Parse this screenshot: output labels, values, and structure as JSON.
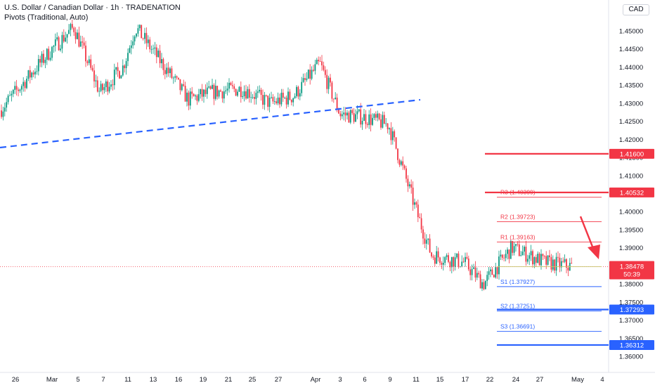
{
  "header": {
    "title": "U.S. Dollar / Canadian Dollar · 1h · TRADENATION",
    "indicator": "Pivots (Traditional, Auto)"
  },
  "currency": "CAD",
  "colors": {
    "up": "#089981",
    "down": "#f23645",
    "trendline": "#2962ff",
    "resistance": "#f23645",
    "support": "#2962ff",
    "pivot_r": "#f23645",
    "pivot_s": "#2962ff",
    "arrow": "#f23645",
    "price_line": "#f23645"
  },
  "chart_data": {
    "type": "candlestick",
    "title": "U.S. Dollar / Canadian Dollar · 1h · TRADENATION",
    "ylim": [
      1.36,
      1.455
    ],
    "y_ticks": [
      "1.45000",
      "1.44500",
      "1.44000",
      "1.43500",
      "1.43000",
      "1.42500",
      "1.42000",
      "1.41500",
      "1.41000",
      "1.40500",
      "1.40000",
      "1.39500",
      "1.39000",
      "1.38500",
      "1.38000",
      "1.37500",
      "1.37000",
      "1.36500",
      "1.36000"
    ],
    "x_ticks": [
      "26",
      "Mar",
      "5",
      "7",
      "11",
      "13",
      "16",
      "19",
      "21",
      "25",
      "27",
      "Apr",
      "3",
      "6",
      "9",
      "11",
      "15",
      "17",
      "22",
      "24",
      "27",
      "May",
      "4"
    ],
    "price_path": [
      {
        "x": "26",
        "y": 1.428
      },
      {
        "x": "Mar",
        "y": 1.445
      },
      {
        "x": "5",
        "y": 1.451
      },
      {
        "x": "7",
        "y": 1.433
      },
      {
        "x": "11",
        "y": 1.44
      },
      {
        "x": "13",
        "y": 1.451
      },
      {
        "x": "16",
        "y": 1.431
      },
      {
        "x": "19",
        "y": 1.433
      },
      {
        "x": "21",
        "y": 1.434
      },
      {
        "x": "25",
        "y": 1.43
      },
      {
        "x": "27",
        "y": 1.432
      },
      {
        "x": "Apr",
        "y": 1.441
      },
      {
        "x": "3",
        "y": 1.427
      },
      {
        "x": "6",
        "y": 1.426
      },
      {
        "x": "9",
        "y": 1.424
      },
      {
        "x": "11",
        "y": 1.398
      },
      {
        "x": "15",
        "y": 1.388
      },
      {
        "x": "17",
        "y": 1.386
      },
      {
        "x": "22",
        "y": 1.38
      },
      {
        "x": "24",
        "y": 1.39
      },
      {
        "x": "27",
        "y": 1.386
      },
      {
        "x": "29",
        "y": 1.3848
      }
    ],
    "trendline": {
      "from": {
        "x": "21 Feb",
        "y": 1.4175
      },
      "to": {
        "x": "10 Apr",
        "y": 1.4305
      }
    },
    "horizontal_levels": [
      {
        "label": "1.41600",
        "value": 1.416,
        "kind": "resistance"
      },
      {
        "label": "1.40532",
        "value": 1.40532,
        "kind": "resistance"
      },
      {
        "label": "1.37293",
        "value": 1.37293,
        "kind": "support"
      },
      {
        "label": "1.36312",
        "value": 1.36312,
        "kind": "support"
      }
    ],
    "pivots": [
      {
        "label": "R3 (1.40399)",
        "value": 1.40399,
        "kind": "r"
      },
      {
        "label": "R2 (1.39723)",
        "value": 1.39723,
        "kind": "r"
      },
      {
        "label": "R1 (1.39163)",
        "value": 1.39163,
        "kind": "r"
      },
      {
        "label": "S1 (1.37927)",
        "value": 1.37927,
        "kind": "s"
      },
      {
        "label": "S2 (1.37251)",
        "value": 1.37251,
        "kind": "s"
      },
      {
        "label": "S3 (1.36691)",
        "value": 1.36691,
        "kind": "s"
      }
    ],
    "current_price": {
      "value": 1.38478,
      "label": "1.38478",
      "countdown": "50:39"
    }
  }
}
